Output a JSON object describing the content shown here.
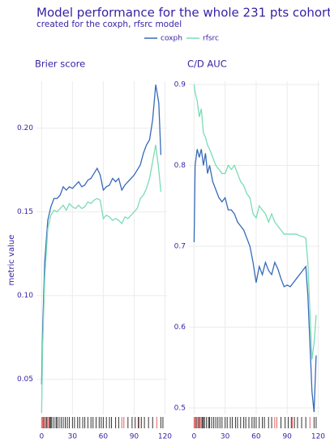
{
  "title": "Model performance for the whole 231 pts cohort",
  "subtitle": "created for the coxph, rfsrc model",
  "y_label": "metric value",
  "chart_data": [
    {
      "type": "line",
      "title": "Brier score",
      "x": [
        0,
        1,
        3,
        6,
        9,
        12,
        15,
        18,
        21,
        24,
        27,
        30,
        33,
        36,
        39,
        42,
        45,
        48,
        51,
        54,
        57,
        60,
        63,
        66,
        69,
        72,
        75,
        78,
        81,
        84,
        87,
        90,
        93,
        96,
        99,
        102,
        105,
        108,
        111,
        114,
        116
      ],
      "series": [
        {
          "name": "coxph",
          "color": "#376ab8",
          "values": [
            0.047,
            0.08,
            0.12,
            0.145,
            0.153,
            0.158,
            0.158,
            0.16,
            0.165,
            0.163,
            0.165,
            0.164,
            0.166,
            0.168,
            0.165,
            0.166,
            0.169,
            0.17,
            0.173,
            0.176,
            0.172,
            0.163,
            0.165,
            0.166,
            0.17,
            0.168,
            0.17,
            0.163,
            0.166,
            0.168,
            0.17,
            0.172,
            0.175,
            0.178,
            0.185,
            0.19,
            0.193,
            0.205,
            0.226,
            0.215,
            0.184
          ]
        },
        {
          "name": "rfsrc",
          "color": "#7bdcb5",
          "values": [
            0.03,
            0.07,
            0.11,
            0.14,
            0.148,
            0.151,
            0.15,
            0.152,
            0.154,
            0.151,
            0.155,
            0.153,
            0.152,
            0.154,
            0.152,
            0.153,
            0.156,
            0.155,
            0.157,
            0.158,
            0.157,
            0.146,
            0.148,
            0.147,
            0.145,
            0.146,
            0.145,
            0.143,
            0.147,
            0.146,
            0.148,
            0.15,
            0.152,
            0.158,
            0.16,
            0.164,
            0.17,
            0.18,
            0.19,
            0.175,
            0.162
          ]
        }
      ],
      "xlim": [
        -5,
        122
      ],
      "xticks": [
        0,
        30,
        60,
        90,
        120
      ],
      "ylim": [
        0.029,
        0.228
      ],
      "yticks": [
        0.05,
        {
          "value": 0.1,
          "label": "0.10"
        },
        0.15,
        {
          "value": 0.2,
          "label": "0.20"
        }
      ],
      "grid": true,
      "rug_times": [
        0,
        1,
        2,
        3,
        4,
        5,
        6,
        7,
        8,
        9,
        10,
        12,
        14,
        15,
        17,
        19,
        21,
        23,
        25,
        27,
        30,
        32,
        35,
        37,
        40,
        42,
        45,
        48,
        50,
        53,
        56,
        58,
        60,
        63,
        66,
        68,
        72,
        75,
        78,
        80,
        84,
        88,
        91,
        94,
        95,
        97,
        100,
        104,
        108,
        112,
        116,
        118
      ],
      "rug_events": [
        1,
        1,
        0,
        1,
        1,
        0,
        1,
        1,
        0,
        0,
        0,
        0,
        0,
        0,
        0,
        0,
        0,
        0,
        0,
        0,
        0,
        0,
        0,
        0,
        0,
        0,
        0,
        0,
        0,
        0,
        0,
        0,
        0,
        0,
        0,
        0,
        0,
        0,
        1,
        1,
        0,
        0,
        0,
        0,
        1,
        0,
        0,
        0,
        0,
        1,
        0,
        0
      ],
      "rug_color": "#333333",
      "rug_event_color": "#e06060"
    },
    {
      "type": "line",
      "title": "C/D AUC",
      "x": [
        0,
        1,
        3,
        5,
        7,
        9,
        11,
        13,
        15,
        18,
        21,
        24,
        27,
        30,
        33,
        36,
        39,
        42,
        45,
        48,
        51,
        54,
        57,
        60,
        63,
        66,
        69,
        72,
        75,
        78,
        81,
        84,
        87,
        90,
        93,
        96,
        99,
        102,
        105,
        108,
        110,
        112,
        114,
        116,
        118
      ],
      "series": [
        {
          "color": "#376ab8",
          "values": [
            0.705,
            0.8,
            0.82,
            0.81,
            0.82,
            0.8,
            0.815,
            0.79,
            0.8,
            0.78,
            0.77,
            0.76,
            0.755,
            0.76,
            0.745,
            0.745,
            0.74,
            0.73,
            0.725,
            0.72,
            0.71,
            0.7,
            0.68,
            0.655,
            0.675,
            0.665,
            0.68,
            0.67,
            0.665,
            0.68,
            0.672,
            0.66,
            0.65,
            0.652,
            0.65,
            0.655,
            0.66,
            0.665,
            0.67,
            0.675,
            0.64,
            0.58,
            0.52,
            0.495,
            0.565
          ]
        },
        {
          "color": "#7bdcb5",
          "values": [
            0.9,
            0.89,
            0.88,
            0.86,
            0.87,
            0.84,
            0.835,
            0.825,
            0.82,
            0.81,
            0.8,
            0.795,
            0.79,
            0.79,
            0.8,
            0.795,
            0.8,
            0.79,
            0.78,
            0.775,
            0.765,
            0.76,
            0.74,
            0.735,
            0.75,
            0.745,
            0.74,
            0.73,
            0.74,
            0.73,
            0.725,
            0.72,
            0.715,
            0.715,
            0.715,
            0.715,
            0.715,
            0.713,
            0.712,
            0.71,
            0.68,
            0.62,
            0.56,
            0.58,
            0.615
          ]
        }
      ],
      "xlim": [
        -5,
        122
      ],
      "xticks": [
        0,
        30,
        60,
        90,
        120
      ],
      "ylim": [
        0.492,
        0.904
      ],
      "yticks": [
        0.5,
        0.6,
        0.7,
        0.8,
        0.9
      ],
      "grid": true,
      "rug_times": [
        0,
        1,
        2,
        3,
        4,
        5,
        6,
        7,
        8,
        9,
        10,
        12,
        14,
        15,
        17,
        19,
        21,
        23,
        25,
        27,
        30,
        32,
        35,
        37,
        40,
        42,
        45,
        48,
        50,
        53,
        56,
        58,
        60,
        63,
        66,
        68,
        72,
        75,
        78,
        80,
        84,
        88,
        91,
        94,
        95,
        97,
        100,
        104,
        108,
        112,
        116,
        118
      ],
      "rug_events": [
        1,
        1,
        0,
        1,
        1,
        0,
        1,
        1,
        0,
        0,
        0,
        0,
        0,
        0,
        0,
        0,
        0,
        0,
        0,
        0,
        0,
        0,
        0,
        0,
        0,
        0,
        0,
        0,
        0,
        0,
        0,
        0,
        0,
        0,
        0,
        0,
        0,
        0,
        1,
        1,
        0,
        0,
        0,
        0,
        1,
        0,
        0,
        0,
        0,
        1,
        0,
        0
      ],
      "rug_color": "#333333",
      "rug_event_color": "#e06060"
    }
  ]
}
